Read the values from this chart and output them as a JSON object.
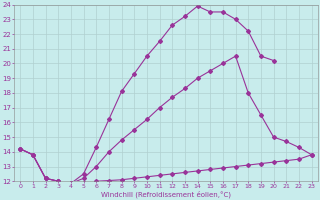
{
  "xlabel": "Windchill (Refroidissement éolien,°C)",
  "background_color": "#c8ecec",
  "grid_color": "#b0d0d0",
  "line_color": "#993399",
  "xlim": [
    0,
    23
  ],
  "ylim": [
    12,
    24
  ],
  "xticks": [
    0,
    1,
    2,
    3,
    4,
    5,
    6,
    7,
    8,
    9,
    10,
    11,
    12,
    13,
    14,
    15,
    16,
    17,
    18,
    19,
    20,
    21,
    22,
    23
  ],
  "yticks": [
    12,
    13,
    14,
    15,
    16,
    17,
    18,
    19,
    20,
    21,
    22,
    23,
    24
  ],
  "line1_x": [
    0,
    1,
    2,
    3,
    4,
    5,
    6,
    7,
    8,
    9,
    10,
    11,
    12,
    13,
    14,
    15,
    16,
    17,
    18,
    19,
    20
  ],
  "line1_y": [
    14.2,
    13.8,
    12.2,
    12.0,
    11.85,
    12.5,
    14.3,
    16.2,
    18.1,
    19.3,
    20.5,
    21.5,
    22.6,
    23.2,
    23.9,
    23.5,
    23.5,
    23.0,
    22.2,
    20.5,
    20.2
  ],
  "line2_x": [
    0,
    1,
    2,
    3,
    4,
    5,
    6,
    7,
    8,
    9,
    10,
    11,
    12,
    13,
    14,
    15,
    16,
    17,
    18,
    19,
    20,
    21,
    22,
    23
  ],
  "line2_y": [
    14.2,
    13.8,
    12.2,
    12.0,
    11.85,
    12.2,
    13.0,
    14.0,
    14.8,
    15.5,
    16.2,
    17.0,
    17.7,
    18.3,
    19.0,
    19.5,
    20.0,
    20.5,
    18.0,
    16.5,
    15.0,
    14.7,
    14.3,
    13.8
  ],
  "line3_x": [
    0,
    1,
    2,
    3,
    4,
    5,
    6,
    7,
    8,
    9,
    10,
    11,
    12,
    13,
    14,
    15,
    16,
    17,
    18,
    19,
    20,
    21,
    22,
    23
  ],
  "line3_y": [
    14.2,
    13.8,
    12.2,
    12.0,
    11.85,
    11.9,
    12.0,
    12.05,
    12.1,
    12.2,
    12.3,
    12.4,
    12.5,
    12.6,
    12.7,
    12.8,
    12.9,
    13.0,
    13.1,
    13.2,
    13.3,
    13.4,
    13.5,
    13.8
  ]
}
